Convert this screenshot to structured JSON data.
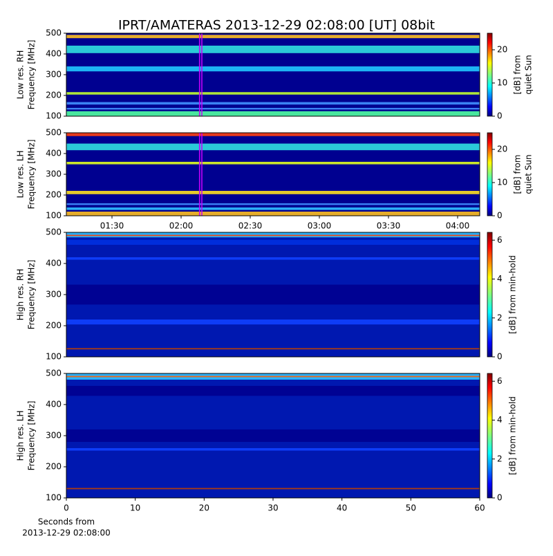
{
  "chart_data": [
    {
      "type": "spectrogram",
      "title": "IPRT/AMATERAS 2013-12-29 02:08:00 [UT]   08bit",
      "ylabel": [
        "Low res. RH",
        "Frequency [MHz]"
      ],
      "ylim": [
        100,
        500
      ],
      "yticks": [
        100,
        200,
        300,
        400,
        500
      ],
      "xlim": [
        70.2,
        249.6
      ],
      "markers": [
        128,
        129
      ],
      "marker_color": "#cc00ff",
      "colormap": "jet",
      "colorbar": {
        "label": [
          "[dB] from",
          "quiet Sun"
        ],
        "lim": [
          0,
          25
        ],
        "ticks": [
          0,
          10,
          20
        ]
      }
    },
    {
      "type": "spectrogram",
      "ylabel": [
        "Low res. LH",
        "Frequency [MHz]"
      ],
      "ylim": [
        100,
        500
      ],
      "yticks": [
        100,
        200,
        300,
        400,
        500
      ],
      "xlim": [
        70.2,
        249.6
      ],
      "xticks": [
        {
          "value": 90,
          "label": "01:30"
        },
        {
          "value": 120,
          "label": "02:00"
        },
        {
          "value": 150,
          "label": "02:30"
        },
        {
          "value": 180,
          "label": "03:00"
        },
        {
          "value": 210,
          "label": "03:30"
        },
        {
          "value": 240,
          "label": "04:00"
        }
      ],
      "markers": [
        128,
        129
      ],
      "marker_color": "#cc00ff",
      "colormap": "jet",
      "colorbar": {
        "label": [
          "[dB] from",
          "quiet Sun"
        ],
        "lim": [
          0,
          25
        ],
        "ticks": [
          0,
          10,
          20
        ]
      }
    },
    {
      "type": "spectrogram",
      "ylabel": [
        "High res. RH",
        "Frequency [MHz]"
      ],
      "ylim": [
        100,
        500
      ],
      "yticks": [
        100,
        200,
        300,
        400,
        500
      ],
      "xlim": [
        0,
        60
      ],
      "colormap": "jet",
      "colorbar": {
        "label": [
          "[dB] from min-hold"
        ],
        "lim": [
          0,
          6.4
        ],
        "ticks": [
          0,
          2,
          4,
          6
        ]
      }
    },
    {
      "type": "spectrogram",
      "ylabel": [
        "High res. LH",
        "Frequency [MHz]"
      ],
      "ylim": [
        100,
        500
      ],
      "yticks": [
        100,
        200,
        300,
        400,
        500
      ],
      "xlim": [
        0,
        60
      ],
      "xticks": [
        0,
        10,
        20,
        30,
        40,
        50,
        60
      ],
      "xlabel": [
        "Seconds from",
        "2013-12-29 02:08:00"
      ],
      "colormap": "jet",
      "colorbar": {
        "label": [
          "[dB] from min-hold"
        ],
        "lim": [
          0,
          6.4
        ],
        "ticks": [
          0,
          2,
          4,
          6
        ]
      }
    }
  ]
}
